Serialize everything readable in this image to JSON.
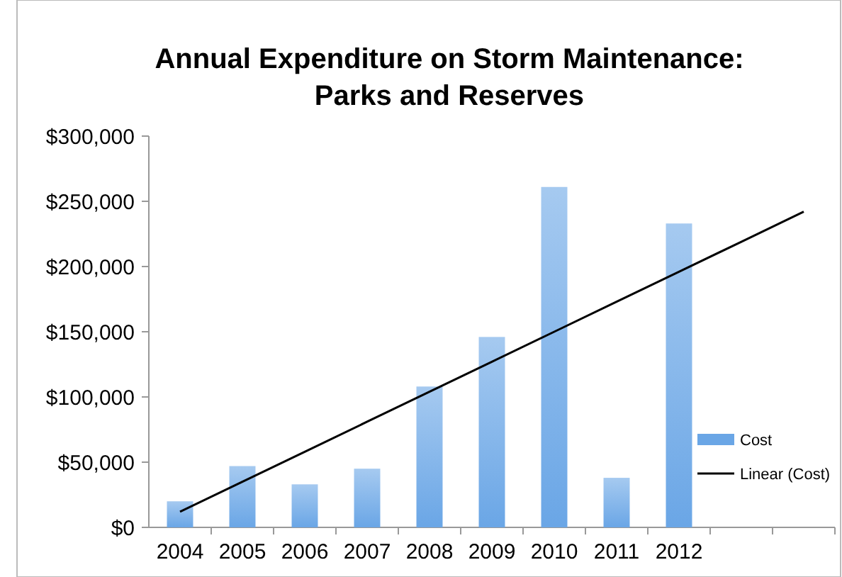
{
  "chart_data": {
    "type": "bar",
    "title": "Annual Expenditure on Storm Maintenance:\nParks and Reserves",
    "categories": [
      "2004",
      "2005",
      "2006",
      "2007",
      "2008",
      "2009",
      "2010",
      "2011",
      "2012",
      null,
      null
    ],
    "series": [
      {
        "name": "Cost",
        "color": "#6aa6e6",
        "values": [
          20000,
          47000,
          33000,
          45000,
          108000,
          146000,
          261000,
          38000,
          233000,
          null,
          null
        ]
      },
      {
        "name": "Linear (Cost)",
        "type": "line",
        "color": "#000000",
        "values": [
          12000,
          35000,
          58000,
          81000,
          104000,
          127000,
          150000,
          173000,
          196000,
          219000,
          242000
        ]
      }
    ],
    "ylim": [
      0,
      300000
    ],
    "yticks": [
      {
        "value": 0,
        "label": "$0"
      },
      {
        "value": 50000,
        "label": "$50,000"
      },
      {
        "value": 100000,
        "label": "$100,000"
      },
      {
        "value": 150000,
        "label": "$150,000"
      },
      {
        "value": 200000,
        "label": "$200,000"
      },
      {
        "value": 250000,
        "label": "$250,000"
      },
      {
        "value": 300000,
        "label": "$300,000"
      }
    ],
    "legend": "right",
    "grid": false,
    "marker": "none",
    "line_style": "solid"
  }
}
